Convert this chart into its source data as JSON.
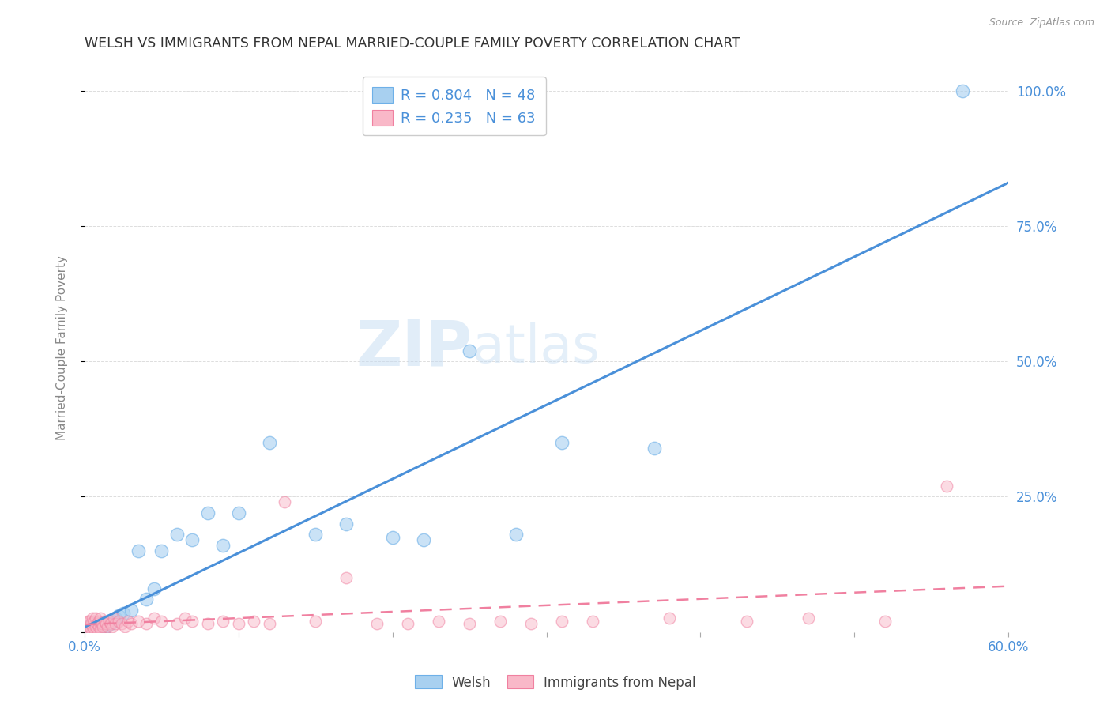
{
  "title": "WELSH VS IMMIGRANTS FROM NEPAL MARRIED-COUPLE FAMILY POVERTY CORRELATION CHART",
  "source": "Source: ZipAtlas.com",
  "ylabel": "Married-Couple Family Poverty",
  "watermark": "ZIPAtlas",
  "xlim": [
    0.0,
    0.6
  ],
  "ylim": [
    0.0,
    1.05
  ],
  "welsh_R": 0.804,
  "welsh_N": 48,
  "nepal_R": 0.235,
  "nepal_N": 63,
  "welsh_color": "#A8D0F0",
  "nepal_color": "#F9B8C8",
  "welsh_edge_color": "#6EB0E8",
  "nepal_edge_color": "#F080A0",
  "welsh_line_color": "#4A90D9",
  "nepal_line_color": "#F080A0",
  "tick_color_blue": "#4A90D9",
  "title_color": "#333333",
  "axis_label_color": "#888888",
  "background_color": "#FFFFFF",
  "grid_color": "#DDDDDD",
  "welsh_x": [
    0.001,
    0.002,
    0.002,
    0.003,
    0.003,
    0.004,
    0.004,
    0.005,
    0.005,
    0.006,
    0.006,
    0.007,
    0.008,
    0.008,
    0.009,
    0.01,
    0.01,
    0.011,
    0.012,
    0.013,
    0.014,
    0.015,
    0.016,
    0.017,
    0.018,
    0.02,
    0.022,
    0.025,
    0.03,
    0.035,
    0.04,
    0.045,
    0.05,
    0.06,
    0.07,
    0.08,
    0.09,
    0.1,
    0.12,
    0.15,
    0.17,
    0.2,
    0.22,
    0.25,
    0.28,
    0.31,
    0.37,
    0.57
  ],
  "welsh_y": [
    0.005,
    0.005,
    0.01,
    0.005,
    0.01,
    0.005,
    0.01,
    0.005,
    0.015,
    0.005,
    0.01,
    0.01,
    0.005,
    0.015,
    0.01,
    0.005,
    0.015,
    0.01,
    0.01,
    0.015,
    0.01,
    0.015,
    0.02,
    0.015,
    0.02,
    0.025,
    0.03,
    0.035,
    0.04,
    0.15,
    0.06,
    0.08,
    0.15,
    0.18,
    0.17,
    0.22,
    0.16,
    0.22,
    0.35,
    0.18,
    0.2,
    0.175,
    0.17,
    0.52,
    0.18,
    0.35,
    0.34,
    1.0
  ],
  "nepal_x": [
    0.001,
    0.001,
    0.002,
    0.002,
    0.003,
    0.003,
    0.004,
    0.004,
    0.005,
    0.005,
    0.006,
    0.006,
    0.007,
    0.007,
    0.008,
    0.008,
    0.009,
    0.009,
    0.01,
    0.01,
    0.011,
    0.012,
    0.013,
    0.014,
    0.015,
    0.016,
    0.017,
    0.018,
    0.019,
    0.02,
    0.022,
    0.024,
    0.026,
    0.028,
    0.03,
    0.035,
    0.04,
    0.045,
    0.05,
    0.06,
    0.065,
    0.07,
    0.08,
    0.09,
    0.1,
    0.11,
    0.12,
    0.13,
    0.15,
    0.17,
    0.19,
    0.21,
    0.23,
    0.25,
    0.27,
    0.29,
    0.31,
    0.33,
    0.38,
    0.43,
    0.47,
    0.52,
    0.56
  ],
  "nepal_y": [
    0.005,
    0.015,
    0.005,
    0.02,
    0.01,
    0.02,
    0.005,
    0.015,
    0.01,
    0.025,
    0.005,
    0.02,
    0.01,
    0.025,
    0.005,
    0.015,
    0.01,
    0.02,
    0.005,
    0.025,
    0.015,
    0.01,
    0.02,
    0.015,
    0.01,
    0.02,
    0.015,
    0.01,
    0.025,
    0.015,
    0.02,
    0.015,
    0.01,
    0.02,
    0.015,
    0.02,
    0.015,
    0.025,
    0.02,
    0.015,
    0.025,
    0.02,
    0.015,
    0.02,
    0.015,
    0.02,
    0.015,
    0.24,
    0.02,
    0.1,
    0.015,
    0.015,
    0.02,
    0.015,
    0.02,
    0.015,
    0.02,
    0.02,
    0.025,
    0.02,
    0.025,
    0.02,
    0.27
  ]
}
